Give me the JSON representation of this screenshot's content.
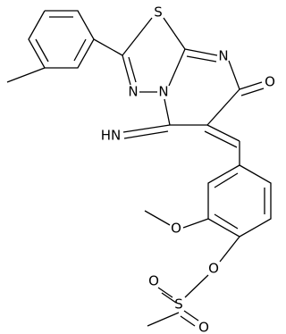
{
  "atoms": {
    "s_ring": "S",
    "n_pyrimidine": "N",
    "n_diazole_1": "N",
    "n_diazole_2": "N",
    "o_ketone": "O",
    "imine": "HN",
    "o_methoxy": "O",
    "o_ester": "O",
    "s_sulfonyl": "S",
    "o_sulfonyl_1": "O",
    "o_sulfonyl_2": "O"
  }
}
